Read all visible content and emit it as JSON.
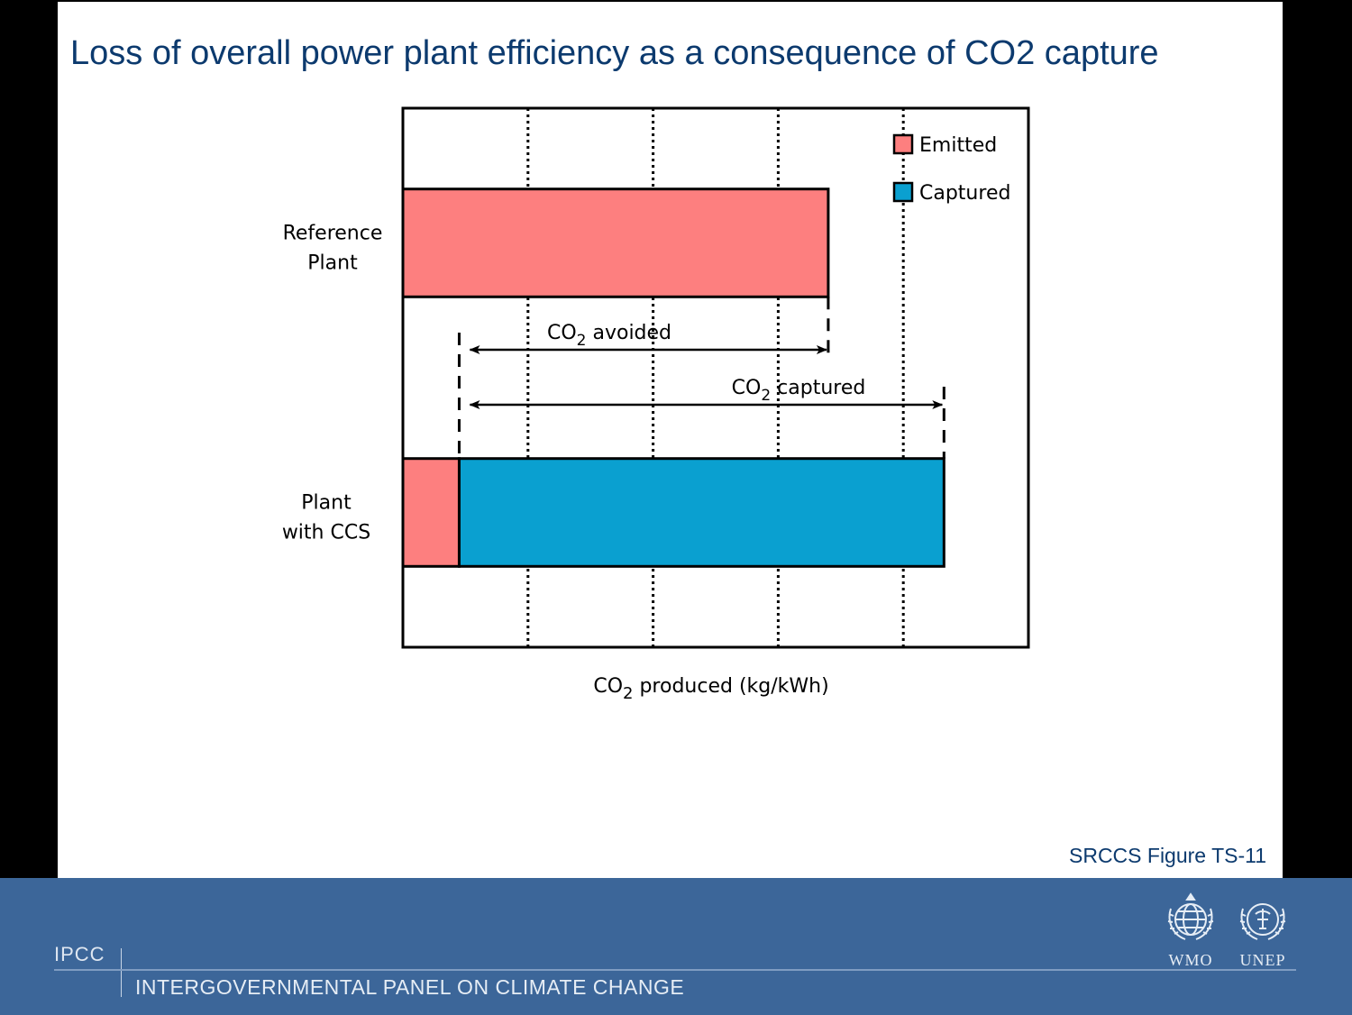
{
  "slide": {
    "title": "Loss of overall power plant efficiency as a consequence of CO2 capture",
    "figure_ref": "SRCCS Figure TS-11"
  },
  "footer": {
    "short_name": "IPCC",
    "full_name": "INTERGOVERNMENTAL PANEL ON CLIMATE CHANGE",
    "logos": [
      {
        "label": "WMO",
        "icon": "wmo-emblem-icon"
      },
      {
        "label": "UNEP",
        "icon": "unep-emblem-icon"
      }
    ]
  },
  "colors": {
    "emitted": "#fd7f7f",
    "captured": "#0aa0d0",
    "title": "#0c3a6e",
    "footer_bg": "#3c6699"
  },
  "chart_data": {
    "type": "bar",
    "orientation": "horizontal",
    "stacked": true,
    "categories": [
      {
        "line1": "Reference",
        "line2": "Plant"
      },
      {
        "line1": "Plant",
        "line2": "with CCS"
      }
    ],
    "series": [
      {
        "name": "Emitted",
        "color": "#fd7f7f",
        "values": [
          0.68,
          0.09
        ]
      },
      {
        "name": "Captured",
        "color": "#0aa0d0",
        "values": [
          0,
          0.775
        ]
      }
    ],
    "xlim": [
      0,
      1.0
    ],
    "gridlines_x": [
      0.2,
      0.4,
      0.6,
      0.8
    ],
    "x_label": {
      "prefix": "CO",
      "sub": "2",
      "suffix": " produced (kg/kWh)"
    },
    "legend": {
      "position": "top-right",
      "items": [
        "Emitted",
        "Captured"
      ]
    },
    "annotations": [
      {
        "prefix": "CO",
        "sub": "2",
        "suffix": " avoided",
        "from": 0.09,
        "to": 0.68
      },
      {
        "prefix": "CO",
        "sub": "2",
        "suffix": " captured",
        "from": 0.09,
        "to": 0.865
      }
    ]
  }
}
